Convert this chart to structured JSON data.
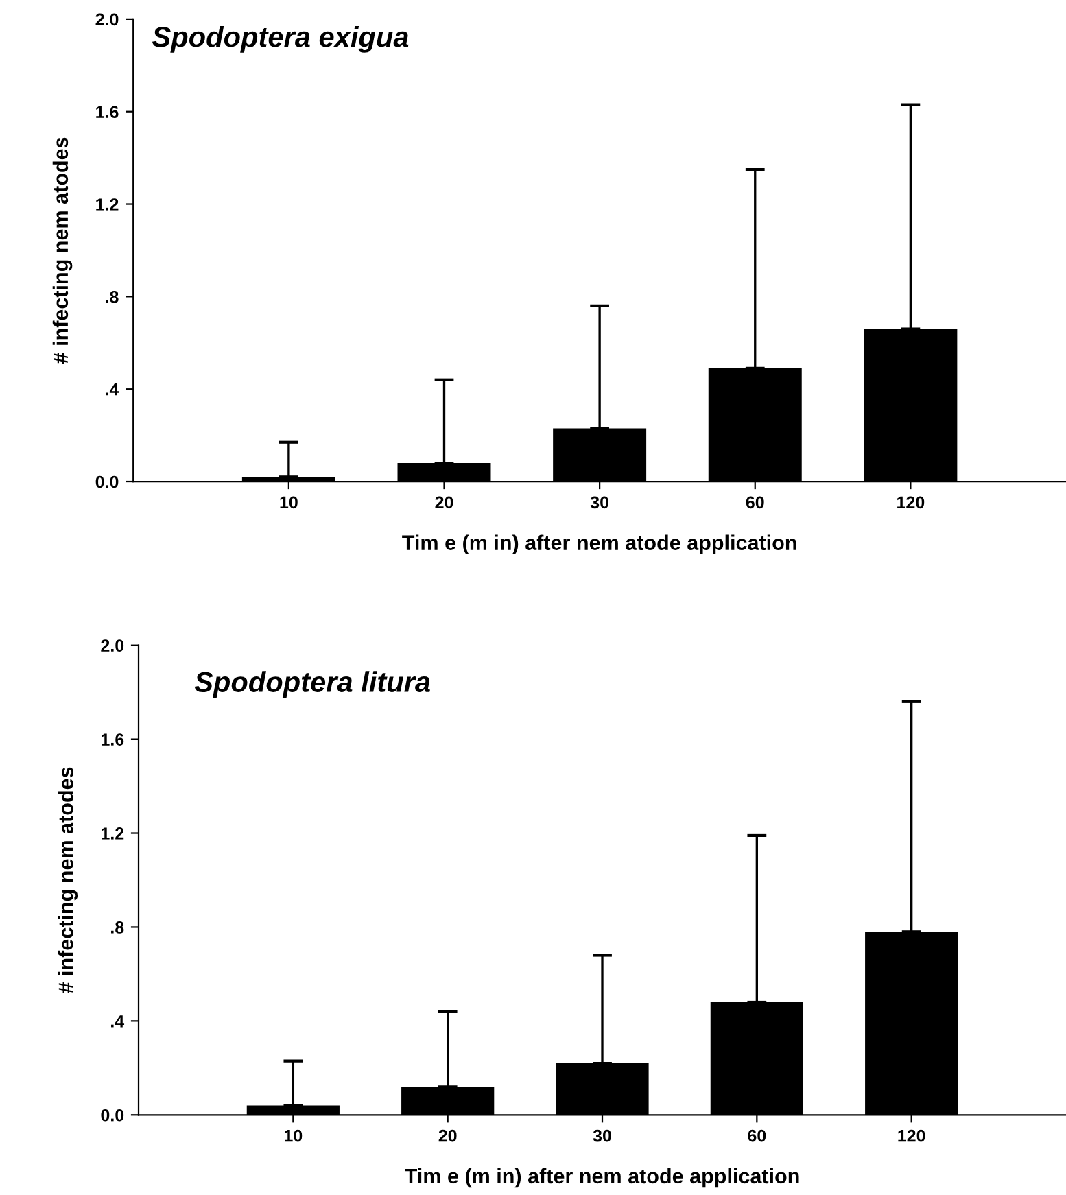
{
  "chart_data": [
    {
      "type": "bar",
      "title": "Spodoptera exigua",
      "xlabel": "Tim e (m in) after nem atode application",
      "ylabel": "# infecting nem atodes",
      "categories": [
        "10",
        "20",
        "30",
        "60",
        "120"
      ],
      "values": [
        0.02,
        0.08,
        0.23,
        0.49,
        0.66
      ],
      "color": "#000000",
      "errors": [
        [
          0.02,
          0.17
        ],
        [
          0.08,
          0.44
        ],
        [
          0.23,
          0.76
        ],
        [
          0.49,
          1.35
        ],
        [
          0.66,
          1.63
        ]
      ],
      "ylim": [
        0,
        2.0
      ],
      "yticks": [
        {
          "value": 0,
          "label": "0.0"
        },
        {
          "value": 0.4,
          "label": ".4"
        },
        {
          "value": 0.8,
          "label": ".8"
        },
        {
          "value": 1.2,
          "label": "1.2"
        },
        {
          "value": 1.6,
          "label": "1.6"
        },
        {
          "value": 2.0,
          "label": "2.0"
        }
      ],
      "grid": false,
      "legend": false
    },
    {
      "type": "bar",
      "title": "Spodoptera litura",
      "xlabel": "Tim e (m in) after nem atode application",
      "ylabel": "# infecting nem atodes",
      "categories": [
        "10",
        "20",
        "30",
        "60",
        "120"
      ],
      "values": [
        0.04,
        0.12,
        0.22,
        0.48,
        0.78
      ],
      "color": "#000000",
      "errors": [
        [
          0.04,
          0.23
        ],
        [
          0.12,
          0.44
        ],
        [
          0.22,
          0.68
        ],
        [
          0.48,
          1.19
        ],
        [
          0.78,
          1.76
        ]
      ],
      "ylim": [
        0,
        2.0
      ],
      "yticks": [
        {
          "value": 0,
          "label": "0.0"
        },
        {
          "value": 0.4,
          "label": ".4"
        },
        {
          "value": 0.8,
          "label": ".8"
        },
        {
          "value": 1.2,
          "label": "1.2"
        },
        {
          "value": 1.6,
          "label": "1.6"
        },
        {
          "value": 2.0,
          "label": "2.0"
        }
      ],
      "grid": false,
      "legend": false
    }
  ]
}
